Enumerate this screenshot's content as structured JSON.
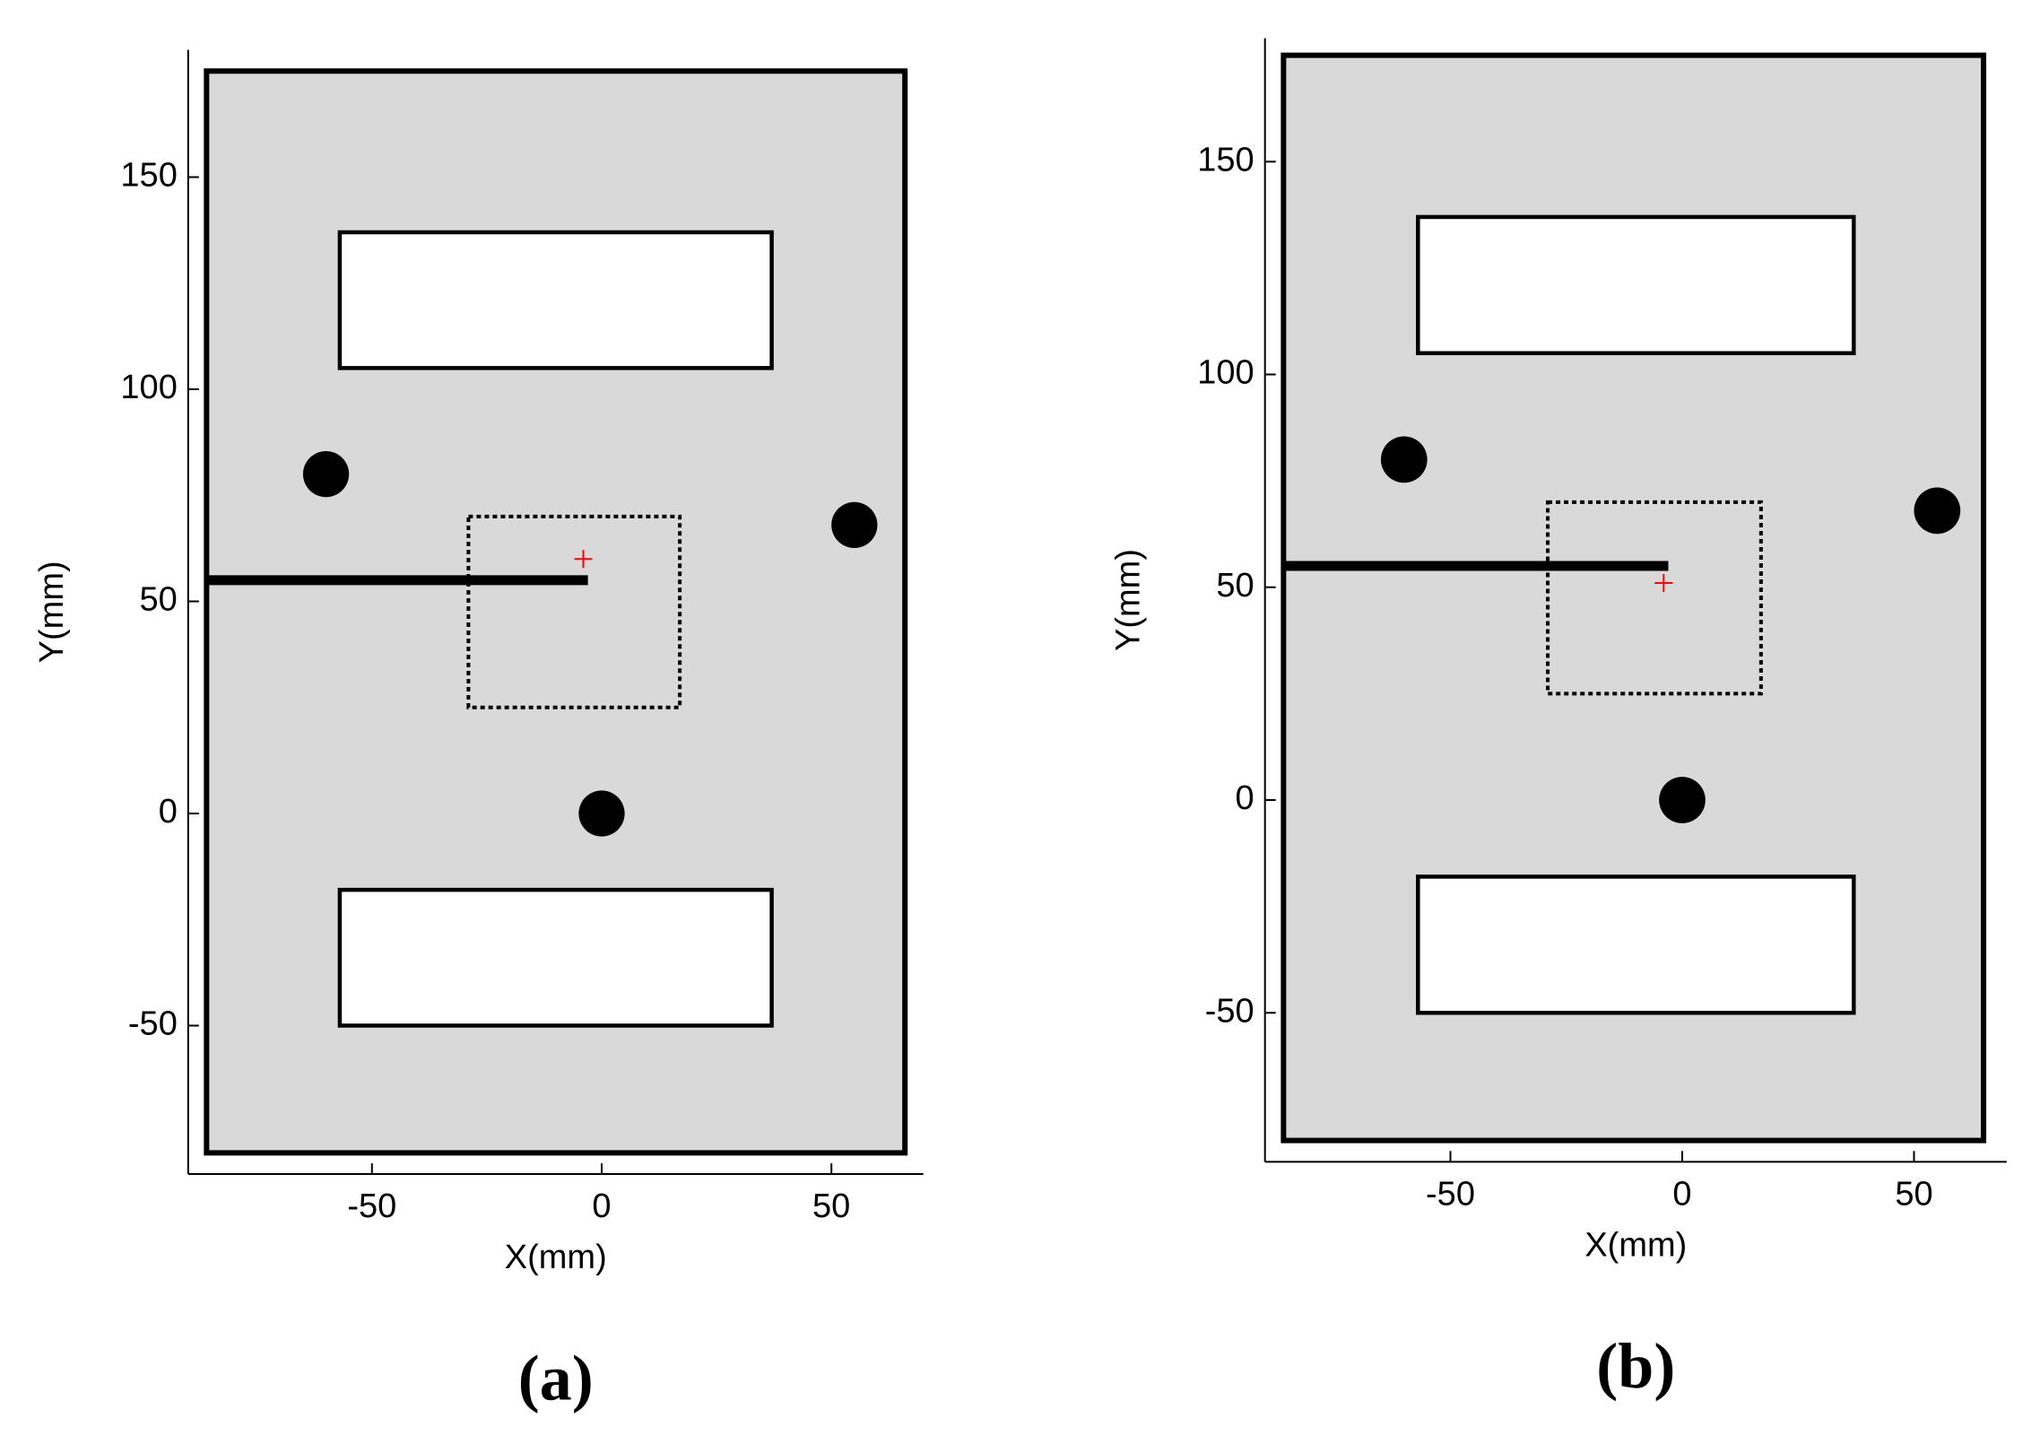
{
  "chart_data": [
    {
      "type": "workspace",
      "label": "(a)",
      "x_label": "X(mm)",
      "y_label": "Y(mm)",
      "xlim": [
        -90,
        70
      ],
      "ylim": [
        -85,
        180
      ],
      "xticks": [
        -50,
        0,
        50
      ],
      "yticks": [
        -50,
        0,
        50,
        100,
        150
      ],
      "area_color": "#d9d9d9",
      "boundary": {
        "x": [
          -86,
          66
        ],
        "y": [
          -80,
          175
        ]
      },
      "obstacles": [
        {
          "x": [
            -57,
            37
          ],
          "y": [
            105,
            137
          ]
        },
        {
          "x": [
            -57,
            37
          ],
          "y": [
            -50,
            -18
          ]
        }
      ],
      "circles": {
        "x": [
          -60,
          55,
          0
        ],
        "y": [
          80,
          68,
          0
        ],
        "r": [
          5,
          5,
          5
        ]
      },
      "bar": {
        "x": [
          -86,
          -3
        ],
        "y": 55
      },
      "window": {
        "x": [
          -29,
          17
        ],
        "y": [
          25,
          70
        ]
      },
      "target": {
        "x": -4,
        "y": 60,
        "color": "#ff0000"
      }
    },
    {
      "type": "workspace",
      "label": "(b)",
      "x_label": "X(mm)",
      "y_label": "Y(mm)",
      "xlim": [
        -90,
        70
      ],
      "ylim": [
        -85,
        179
      ],
      "xticks": [
        -50,
        0,
        50
      ],
      "yticks": [
        -50,
        0,
        50,
        100,
        150
      ],
      "area_color": "#d9d9d9",
      "boundary": {
        "x": [
          -86,
          65
        ],
        "y": [
          -80,
          175
        ]
      },
      "obstacles": [
        {
          "x": [
            -57,
            37
          ],
          "y": [
            105,
            137
          ]
        },
        {
          "x": [
            -57,
            37
          ],
          "y": [
            -50,
            -18
          ]
        }
      ],
      "circles": {
        "x": [
          -60,
          55,
          0
        ],
        "y": [
          80,
          68,
          0
        ],
        "r": [
          5,
          5,
          5
        ]
      },
      "bar": {
        "x": [
          -86,
          -3
        ],
        "y": 55
      },
      "window": {
        "x": [
          -29,
          17
        ],
        "y": [
          25,
          70
        ]
      },
      "target": {
        "x": -4,
        "y": 51,
        "color": "#ff0000"
      }
    }
  ]
}
